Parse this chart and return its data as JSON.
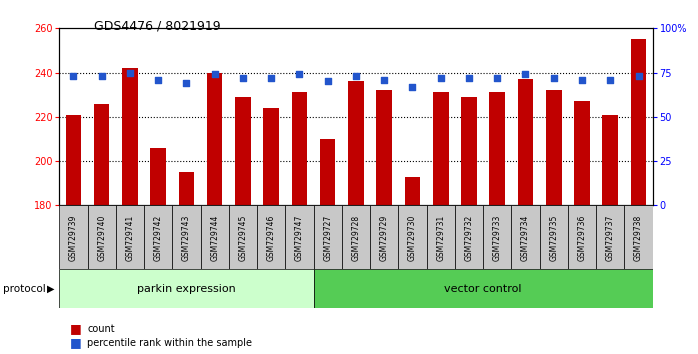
{
  "title": "GDS4476 / 8021919",
  "samples": [
    "GSM729739",
    "GSM729740",
    "GSM729741",
    "GSM729742",
    "GSM729743",
    "GSM729744",
    "GSM729745",
    "GSM729746",
    "GSM729747",
    "GSM729727",
    "GSM729728",
    "GSM729729",
    "GSM729730",
    "GSM729731",
    "GSM729732",
    "GSM729733",
    "GSM729734",
    "GSM729735",
    "GSM729736",
    "GSM729737",
    "GSM729738"
  ],
  "counts": [
    221,
    226,
    242,
    206,
    195,
    240,
    229,
    224,
    231,
    210,
    236,
    232,
    193,
    231,
    229,
    231,
    237,
    232,
    227,
    221,
    255
  ],
  "percentiles": [
    73,
    73,
    75,
    71,
    69,
    74,
    72,
    72,
    74,
    70,
    73,
    71,
    67,
    72,
    72,
    72,
    74,
    72,
    71,
    71,
    73
  ],
  "parkin_count": 9,
  "vector_count": 12,
  "ymin": 180,
  "ymax": 260,
  "yticks": [
    180,
    200,
    220,
    240,
    260
  ],
  "y2ticks": [
    0,
    25,
    50,
    75,
    100
  ],
  "bar_color": "#c00000",
  "dot_color": "#2255cc",
  "parkin_color": "#ccffcc",
  "vector_color": "#55cc55",
  "label_bg_color": "#c8c8c8",
  "bar_width": 0.55
}
